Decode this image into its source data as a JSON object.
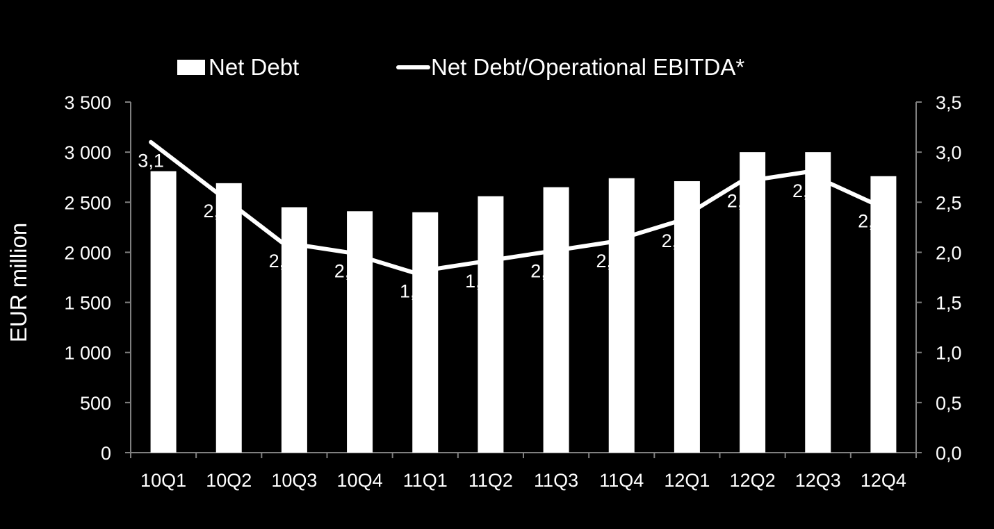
{
  "chart_data": {
    "type": "bar",
    "categories": [
      "10Q1",
      "10Q2",
      "10Q3",
      "10Q4",
      "11Q1",
      "11Q2",
      "11Q3",
      "11Q4",
      "12Q1",
      "12Q2",
      "12Q3",
      "12Q4"
    ],
    "series": [
      {
        "name": "Net Debt",
        "type": "bar",
        "axis": "left",
        "values": [
          2810,
          2690,
          2450,
          2410,
          2400,
          2560,
          2650,
          2740,
          2710,
          3000,
          3000,
          2760
        ]
      },
      {
        "name": "Net Debt/Operational EBITDA*",
        "type": "line",
        "axis": "right",
        "values": [
          3.1,
          2.6,
          2.1,
          2.0,
          1.8,
          1.9,
          2.0,
          2.1,
          2.3,
          2.7,
          2.8,
          2.5
        ],
        "labels": [
          "3,1",
          "2,6",
          "2,1",
          "2,0",
          "1,8",
          "1,9",
          "2,0",
          "2,1",
          "2,3",
          "2,7",
          "2,8",
          "2,5"
        ]
      }
    ],
    "y_left": {
      "label": "EUR million",
      "ylim": [
        0,
        3500
      ],
      "ticks": [
        0,
        500,
        1000,
        1500,
        2000,
        2500,
        3000,
        3500
      ],
      "tick_labels": [
        "0",
        "500",
        "1 000",
        "1 500",
        "2 000",
        "2 500",
        "3 000",
        "3 500"
      ]
    },
    "y_right": {
      "label": "",
      "ylim": [
        0,
        3.5
      ],
      "ticks": [
        0,
        0.5,
        1.0,
        1.5,
        2.0,
        2.5,
        3.0,
        3.5
      ],
      "tick_labels": [
        "0,0",
        "0,5",
        "1,0",
        "1,5",
        "2,0",
        "2,5",
        "3,0",
        "3,5"
      ]
    },
    "legend_position": "top",
    "grid": false,
    "colors": {
      "background": "#000000",
      "bars": "#ffffff",
      "line": "#ffffff",
      "axes": "#808080",
      "text": "#ffffff"
    }
  }
}
